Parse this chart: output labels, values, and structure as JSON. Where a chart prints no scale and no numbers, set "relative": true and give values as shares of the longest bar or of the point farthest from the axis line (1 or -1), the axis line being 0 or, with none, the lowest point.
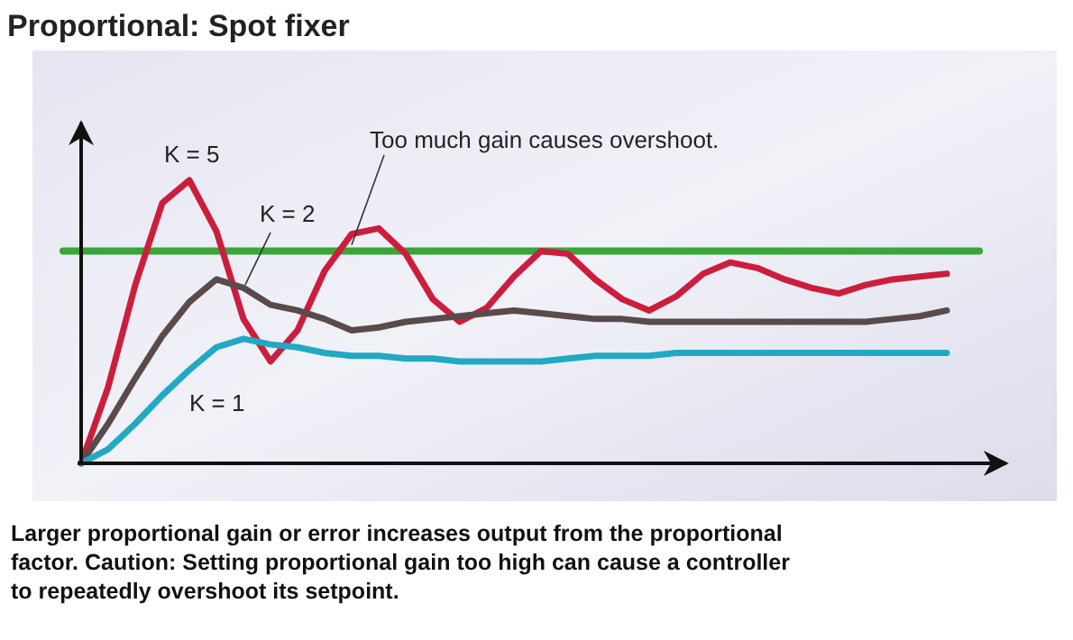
{
  "chart_data": {
    "type": "line",
    "title": "Proportional: Spot fixer",
    "relative": true,
    "categories": [
      null,
      null,
      null,
      null,
      null,
      null,
      null,
      null,
      null,
      null,
      null,
      null,
      null,
      null,
      null,
      null,
      null,
      null,
      null,
      null,
      null,
      null,
      null,
      null,
      null,
      null,
      null,
      null,
      null,
      null,
      null,
      null,
      null
    ],
    "series": [
      {
        "name": "K = 5",
        "color": "#cc1e3c",
        "values": [
          0.0,
          0.27,
          0.63,
          0.92,
          1.0,
          0.82,
          0.51,
          0.36,
          0.47,
          0.68,
          0.81,
          0.83,
          0.74,
          0.58,
          0.5,
          0.55,
          0.66,
          0.75,
          0.74,
          0.65,
          0.58,
          0.54,
          0.59,
          0.67,
          0.71,
          0.69,
          0.65,
          0.62,
          0.6,
          0.63,
          0.65,
          0.66,
          0.67
        ]
      },
      {
        "name": "K = 2",
        "color": "#5a4a4a",
        "values": [
          0.0,
          0.14,
          0.3,
          0.45,
          0.57,
          0.65,
          0.62,
          0.56,
          0.54,
          0.51,
          0.47,
          0.48,
          0.5,
          0.51,
          0.52,
          0.53,
          0.54,
          0.53,
          0.52,
          0.51,
          0.51,
          0.5,
          0.5,
          0.5,
          0.5,
          0.5,
          0.5,
          0.5,
          0.5,
          0.5,
          0.51,
          0.52,
          0.54
        ]
      },
      {
        "name": "K = 1",
        "color": "#21a9c4",
        "values": [
          0.0,
          0.05,
          0.14,
          0.24,
          0.33,
          0.41,
          0.44,
          0.42,
          0.41,
          0.39,
          0.38,
          0.38,
          0.37,
          0.37,
          0.36,
          0.36,
          0.36,
          0.36,
          0.37,
          0.38,
          0.38,
          0.38,
          0.39,
          0.39,
          0.39,
          0.39,
          0.39,
          0.39,
          0.39,
          0.39,
          0.39,
          0.39,
          0.39
        ]
      }
    ],
    "ref_lines": [
      {
        "axis": "y",
        "value": 0.75,
        "color": "#3aa53a"
      }
    ],
    "annotations": [
      "Too much gain causes overshoot.",
      "Larger proportional gain or error increases output from the proportional factor. Caution: Setting proportional gain too high can cause a controller to repeatedly overshoot its setpoint."
    ]
  }
}
